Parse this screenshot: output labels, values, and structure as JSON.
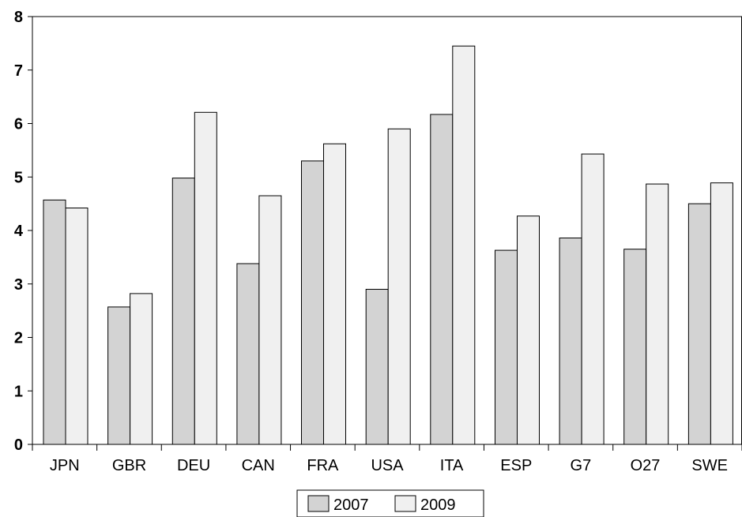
{
  "chart_data": {
    "type": "bar",
    "ylim": [
      0,
      8
    ],
    "yticks": [
      "0",
      "1",
      "2",
      "3",
      "4",
      "5",
      "6",
      "7",
      "8"
    ],
    "grid": false,
    "legend_position": "bottom-center",
    "categories": [
      "JPN",
      "GBR",
      "DEU",
      "CAN",
      "FRA",
      "USA",
      "ITA",
      "ESP",
      "G7",
      "O27",
      "SWE"
    ],
    "series": [
      {
        "name": "2007",
        "color": "#d3d3d3",
        "values": [
          4.57,
          2.57,
          4.98,
          3.38,
          5.3,
          2.9,
          6.17,
          3.63,
          3.86,
          3.65,
          4.5
        ]
      },
      {
        "name": "2009",
        "color": "#f0f0f0",
        "values": [
          4.42,
          2.82,
          6.21,
          4.65,
          5.62,
          5.9,
          7.45,
          4.27,
          5.43,
          4.87,
          4.89
        ]
      }
    ]
  }
}
